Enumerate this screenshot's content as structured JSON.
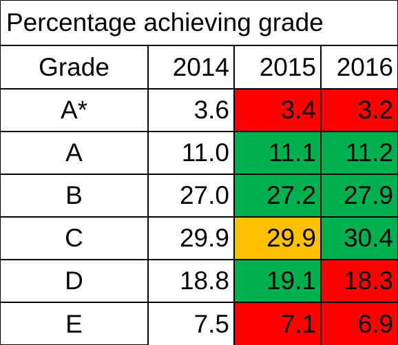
{
  "title": "Percentage achieving grade",
  "colors": {
    "red": "#ff0000",
    "green": "#00b050",
    "amber": "#ffc000",
    "none": "#ffffff"
  },
  "chart_data": {
    "type": "table",
    "title": "Percentage achieving grade",
    "columns": [
      "Grade",
      "2014",
      "2015",
      "2016"
    ],
    "rows": [
      {
        "grade": "A*",
        "values": [
          "3.6",
          "3.4",
          "3.2"
        ],
        "fills": [
          "none",
          "red",
          "red"
        ]
      },
      {
        "grade": "A",
        "values": [
          "11.0",
          "11.1",
          "11.2"
        ],
        "fills": [
          "none",
          "green",
          "green"
        ]
      },
      {
        "grade": "B",
        "values": [
          "27.0",
          "27.2",
          "27.9"
        ],
        "fills": [
          "none",
          "green",
          "green"
        ]
      },
      {
        "grade": "C",
        "values": [
          "29.9",
          "29.9",
          "30.4"
        ],
        "fills": [
          "none",
          "amber",
          "green"
        ]
      },
      {
        "grade": "D",
        "values": [
          "18.8",
          "19.1",
          "18.3"
        ],
        "fills": [
          "none",
          "green",
          "red"
        ]
      },
      {
        "grade": "E",
        "values": [
          "7.5",
          "7.1",
          "6.9"
        ],
        "fills": [
          "none",
          "red",
          "red"
        ]
      }
    ]
  }
}
